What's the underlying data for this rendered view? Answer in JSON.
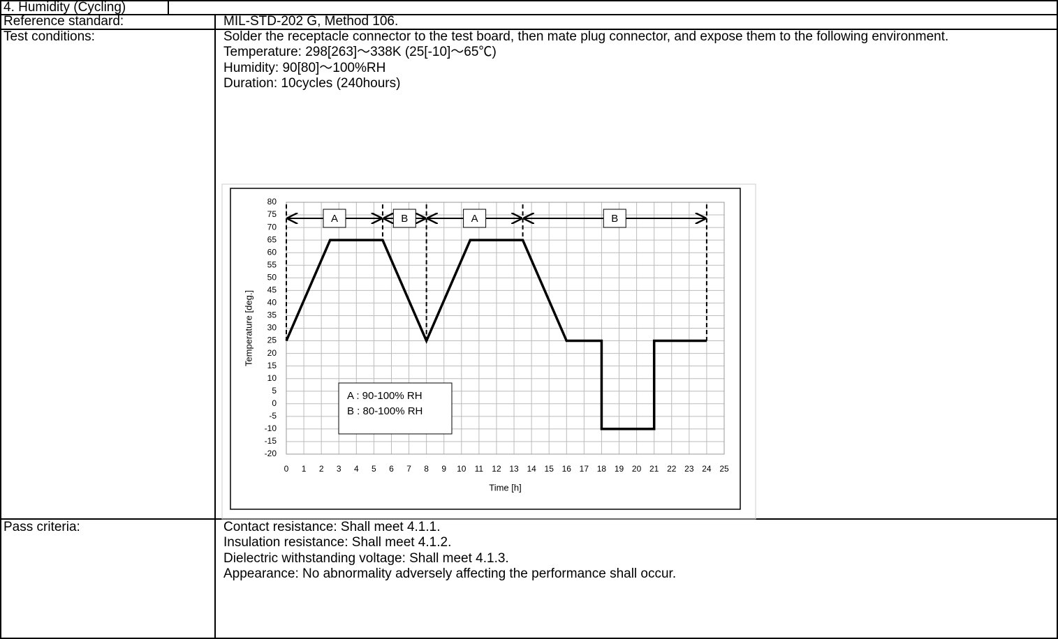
{
  "title": "4. Humidity (Cycling)",
  "rows": [
    {
      "label": "Reference standard:",
      "lines": [
        "MIL-STD-202 G, Method 106."
      ]
    },
    {
      "label": "Test conditions:",
      "lines": [
        "Solder the receptacle connector to the test board, then mate plug connector, and expose them to the following environment.",
        "Temperature: 298[263]～338K (25[-10]～65℃)",
        "Humidity: 90[80]～100%RH",
        "Duration: 10cycles (240hours)"
      ]
    },
    {
      "label": "Pass criteria:",
      "lines": [
        "Contact resistance: Shall meet 4.1.1.",
        "Insulation resistance: Shall meet 4.1.2.",
        "Dielectric withstanding voltage: Shall meet 4.1.3.",
        "Appearance: No abnormality adversely affecting the performance shall occur."
      ]
    }
  ],
  "chart_data": {
    "type": "line",
    "xlabel": "Time [h]",
    "ylabel": "Temperature [deg.]",
    "xlim": [
      0,
      25
    ],
    "ylim": [
      -20,
      80
    ],
    "xticks": [
      0,
      1,
      2,
      3,
      4,
      5,
      6,
      7,
      8,
      9,
      10,
      11,
      12,
      13,
      14,
      15,
      16,
      17,
      18,
      19,
      20,
      21,
      22,
      23,
      24,
      25
    ],
    "yticks": [
      -20,
      -15,
      -10,
      -5,
      0,
      5,
      10,
      15,
      20,
      25,
      30,
      35,
      40,
      45,
      50,
      55,
      60,
      65,
      70,
      75,
      80
    ],
    "grid": true,
    "series": [
      {
        "color": "#000000",
        "x": [
          0,
          2.5,
          5.5,
          8,
          10.5,
          13.5,
          16,
          18,
          18,
          21,
          21,
          24
        ],
        "values": [
          25,
          65,
          65,
          25,
          65,
          65,
          25,
          25,
          -10,
          -10,
          25,
          25
        ]
      }
    ],
    "regions": [
      {
        "label": "A",
        "start": 0,
        "end": 5.5
      },
      {
        "label": "B",
        "start": 5.5,
        "end": 8
      },
      {
        "label": "A",
        "start": 8,
        "end": 13.5
      },
      {
        "label": "B",
        "start": 13.5,
        "end": 24
      }
    ],
    "legend_box": [
      "A : 90-100% RH",
      "B : 80-100% RH"
    ]
  }
}
